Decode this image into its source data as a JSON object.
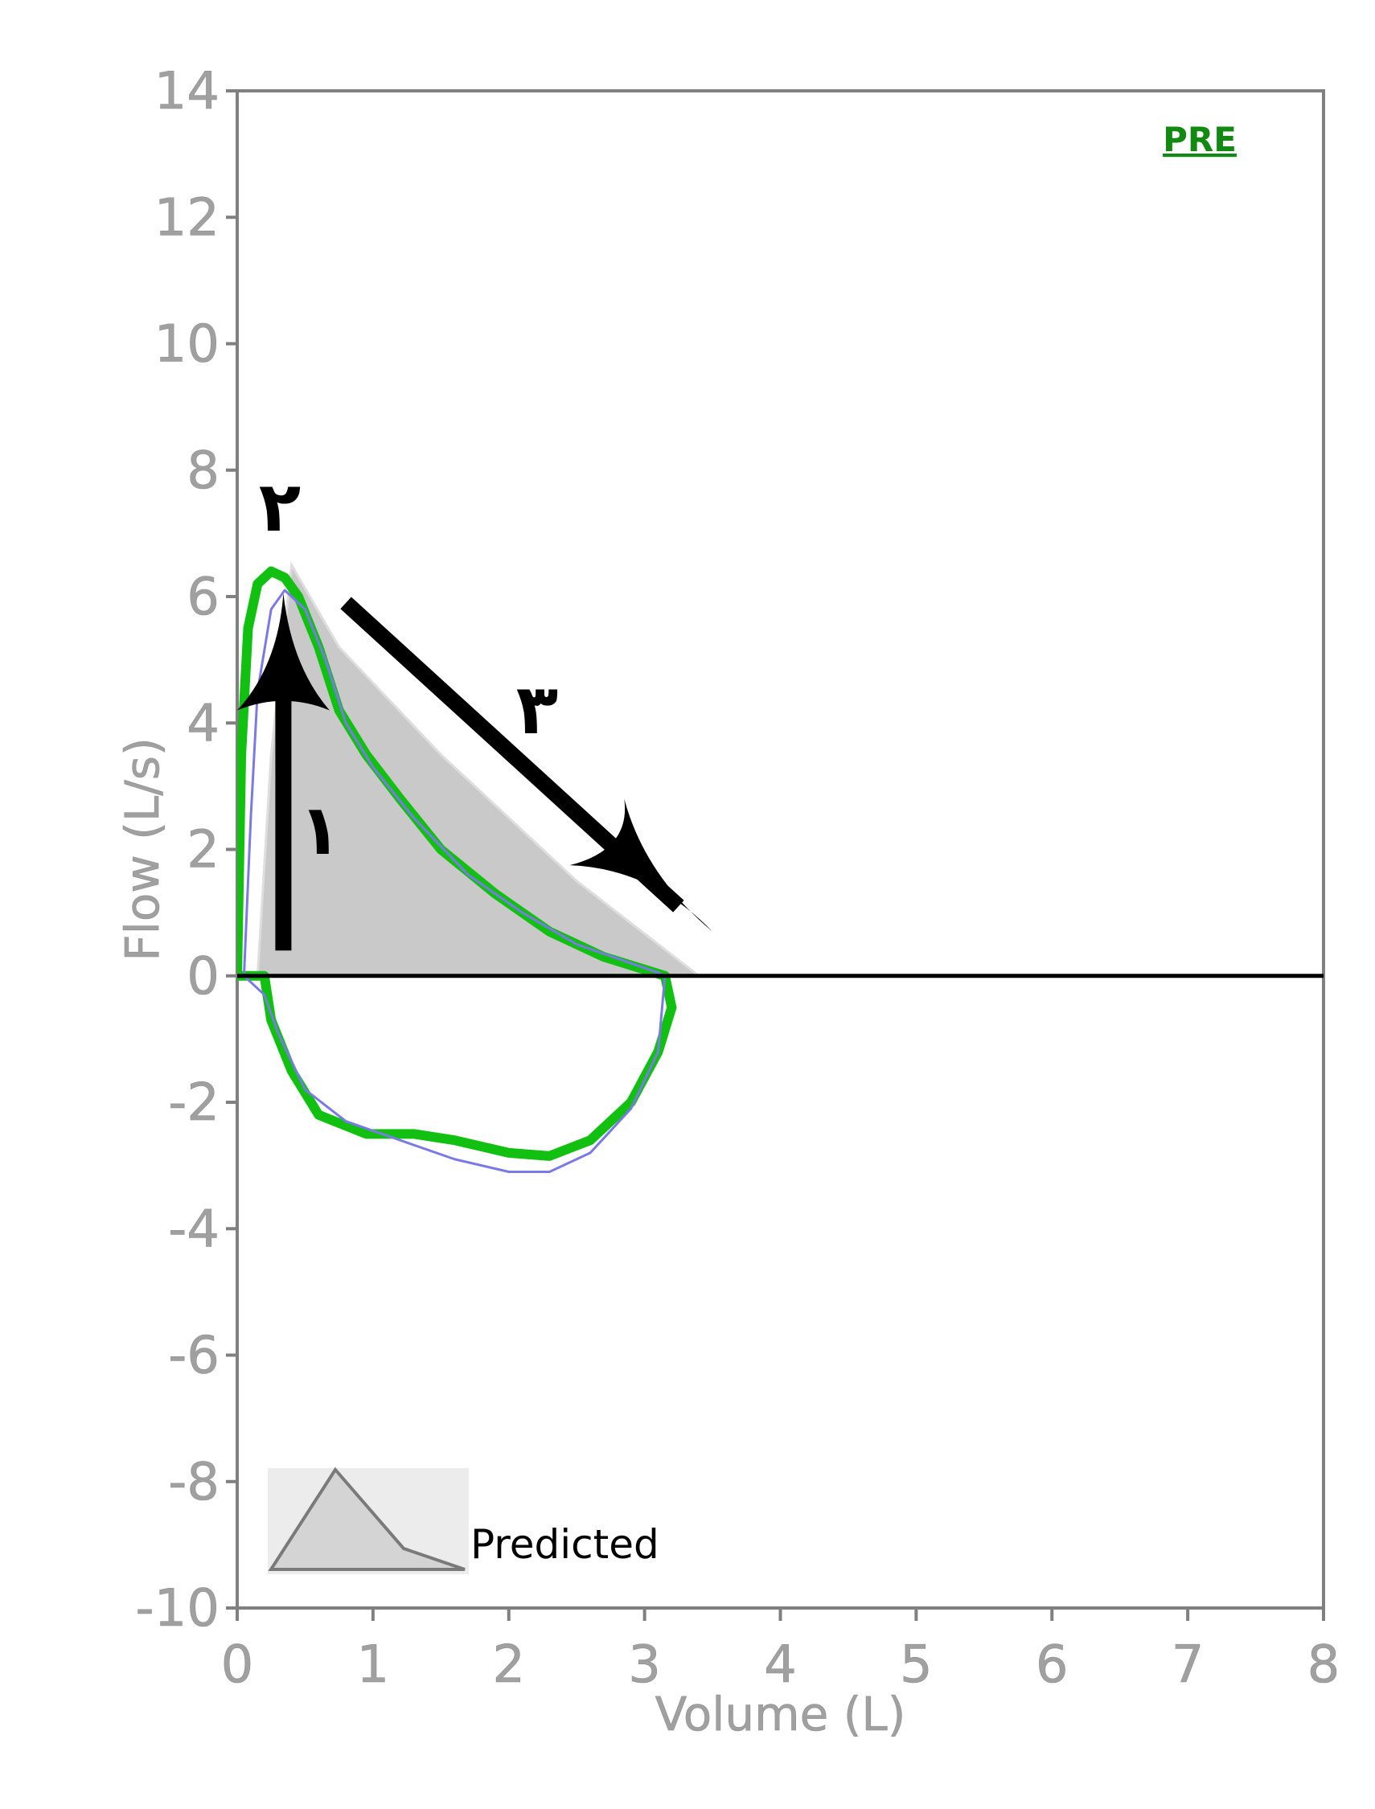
{
  "chart_data": {
    "type": "line",
    "title": "",
    "xlabel": "Volume (L)",
    "ylabel": "Flow (L/s)",
    "xlim": [
      0,
      8
    ],
    "ylim": [
      -10,
      14
    ],
    "x_ticks": [
      "0",
      "1",
      "2",
      "3",
      "4",
      "5",
      "6",
      "7",
      "8"
    ],
    "y_ticks": [
      "-10",
      "-8",
      "-6",
      "-4",
      "-2",
      "0",
      "2",
      "4",
      "6",
      "8",
      "10",
      "12",
      "14"
    ],
    "grid": false,
    "tag": "PRE",
    "legend": {
      "placement": "bottom-left",
      "label": "Predicted"
    },
    "annotations": [
      "١",
      "٢",
      "٣"
    ],
    "colors": {
      "measured": "#12c012",
      "second_trial": "#7a7ae6",
      "predicted_fill": "#c9c9c9",
      "axis": "#808080",
      "tag": "#128a12"
    },
    "series": [
      {
        "role": "predicted",
        "x": [
          0.15,
          0.25,
          0.4,
          0.75,
          1.5,
          2.5,
          3.4
        ],
        "y": [
          0,
          3.5,
          6.5,
          5.2,
          3.5,
          1.5,
          0
        ]
      },
      {
        "role": "measured",
        "x": [
          0,
          0.03,
          0.08,
          0.15,
          0.25,
          0.35,
          0.45,
          0.6,
          0.75,
          0.95,
          1.2,
          1.5,
          1.9,
          2.3,
          2.7,
          3.0,
          3.15,
          3.2,
          3.1,
          2.9,
          2.6,
          2.3,
          2.0,
          1.6,
          1.3,
          0.95,
          0.6,
          0.4,
          0.25,
          0.2,
          0
        ],
        "y": [
          0,
          3.5,
          5.5,
          6.2,
          6.4,
          6.3,
          6.0,
          5.2,
          4.2,
          3.5,
          2.8,
          2.0,
          1.3,
          0.7,
          0.3,
          0.1,
          0,
          -0.5,
          -1.2,
          -2.0,
          -2.6,
          -2.85,
          -2.8,
          -2.6,
          -2.5,
          -2.5,
          -2.2,
          -1.5,
          -0.7,
          0,
          0
        ]
      },
      {
        "role": "second_trial",
        "x": [
          0.05,
          0.1,
          0.15,
          0.25,
          0.35,
          0.5,
          0.65,
          0.8,
          1.0,
          1.3,
          1.7,
          2.1,
          2.5,
          2.9,
          3.1,
          3.15,
          3.1,
          2.9,
          2.6,
          2.3,
          2.0,
          1.6,
          1.2,
          0.8,
          0.5,
          0.3,
          0.2,
          0.05
        ],
        "y": [
          0,
          2.5,
          4.5,
          5.8,
          6.1,
          5.8,
          5.0,
          4.0,
          3.3,
          2.5,
          1.6,
          1.0,
          0.5,
          0.2,
          0.05,
          0,
          -1.2,
          -2.1,
          -2.8,
          -3.1,
          -3.1,
          -2.9,
          -2.6,
          -2.3,
          -1.8,
          -0.9,
          -0.3,
          0
        ]
      }
    ]
  }
}
